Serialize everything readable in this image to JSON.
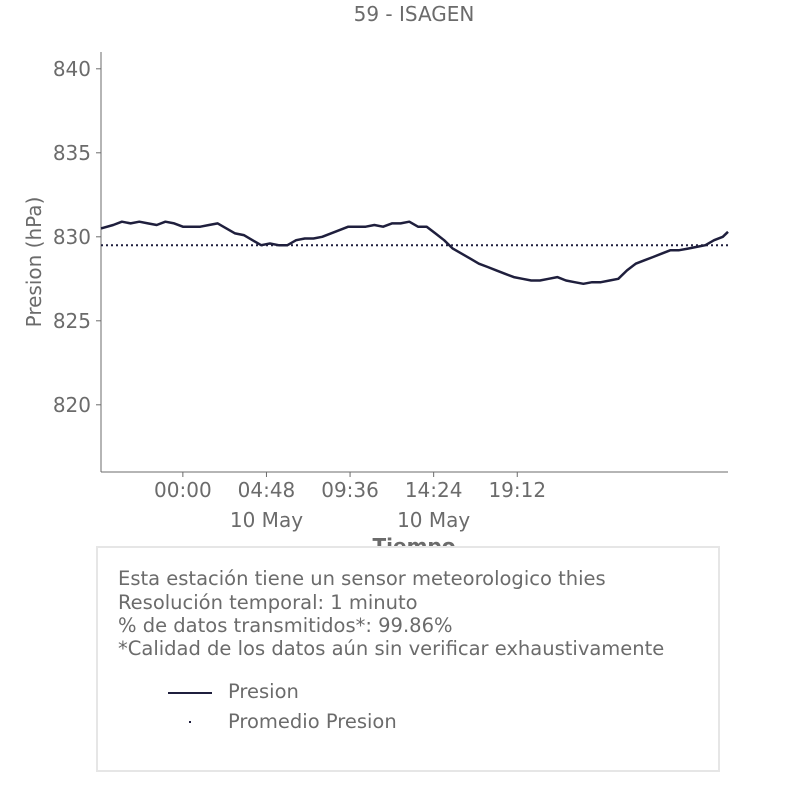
{
  "chart_data": {
    "type": "line",
    "title": "59 - ISAGEN",
    "xlabel": "Tiempo",
    "ylabel": "Presion (hPa)",
    "ylim": [
      816,
      841
    ],
    "xlim_hours": [
      -4.7,
      31.3
    ],
    "yticks": [
      820,
      825,
      830,
      835,
      840
    ],
    "xticks": [
      {
        "hour": 0,
        "label": "00:00",
        "sublabel": ""
      },
      {
        "hour": 4.8,
        "label": "04:48",
        "sublabel": "10 May"
      },
      {
        "hour": 9.6,
        "label": "09:36",
        "sublabel": ""
      },
      {
        "hour": 14.4,
        "label": "14:24",
        "sublabel": "10 May"
      },
      {
        "hour": 19.2,
        "label": "19:12",
        "sublabel": ""
      }
    ],
    "series": [
      {
        "name": "Presion",
        "color": "#1f1f3d",
        "style": "solid",
        "x": [
          -4.7,
          -4.0,
          -3.5,
          -3.0,
          -2.5,
          -2.0,
          -1.5,
          -1.0,
          -0.5,
          0.0,
          0.5,
          1.0,
          1.5,
          2.0,
          2.5,
          3.0,
          3.5,
          4.0,
          4.5,
          5.0,
          5.5,
          6.0,
          6.5,
          7.0,
          7.5,
          8.0,
          8.5,
          9.0,
          9.5,
          10.0,
          10.5,
          11.0,
          11.5,
          12.0,
          12.5,
          13.0,
          13.5,
          14.0,
          14.5,
          15.0,
          15.5,
          16.0,
          16.5,
          17.0,
          17.5,
          18.0,
          18.5,
          19.0,
          19.5,
          20.0,
          20.5,
          21.0,
          21.5,
          22.0,
          22.5,
          23.0,
          23.5,
          24.0,
          24.5,
          25.0,
          25.5,
          26.0,
          26.5,
          27.0,
          27.5,
          28.0,
          28.5,
          29.0,
          29.5,
          30.0,
          30.5,
          31.0,
          31.3
        ],
        "values": [
          830.5,
          830.7,
          830.9,
          830.8,
          830.9,
          830.8,
          830.7,
          830.9,
          830.8,
          830.6,
          830.6,
          830.6,
          830.7,
          830.8,
          830.5,
          830.2,
          830.1,
          829.8,
          829.5,
          829.6,
          829.5,
          829.5,
          829.8,
          829.9,
          829.9,
          830.0,
          830.2,
          830.4,
          830.6,
          830.6,
          830.6,
          830.7,
          830.6,
          830.8,
          830.8,
          830.9,
          830.6,
          830.6,
          830.2,
          829.8,
          829.3,
          829.0,
          828.7,
          828.4,
          828.2,
          828.0,
          827.8,
          827.6,
          827.5,
          827.4,
          827.4,
          827.5,
          827.6,
          827.4,
          827.3,
          827.2,
          827.3,
          827.3,
          827.4,
          827.5,
          828.0,
          828.4,
          828.6,
          828.8,
          829.0,
          829.2,
          829.2,
          829.3,
          829.4,
          829.5,
          829.8,
          830.0,
          830.3
        ]
      },
      {
        "name": "Promedio Presion",
        "color": "#1f1f3d",
        "style": "dotted",
        "x": [
          -4.7,
          31.3
        ],
        "values": [
          829.5,
          829.5
        ]
      }
    ],
    "grid": false,
    "legend_position": "bottom"
  },
  "info": {
    "lines": [
      "Esta estación tiene un sensor meteorologico thies",
      "Resolución temporal: 1 minuto",
      "% de datos transmitidos*: 99.86%",
      "*Calidad de los datos aún sin verificar exhaustivamente"
    ]
  },
  "legend": {
    "items": [
      "Presion",
      "Promedio Presion"
    ]
  }
}
